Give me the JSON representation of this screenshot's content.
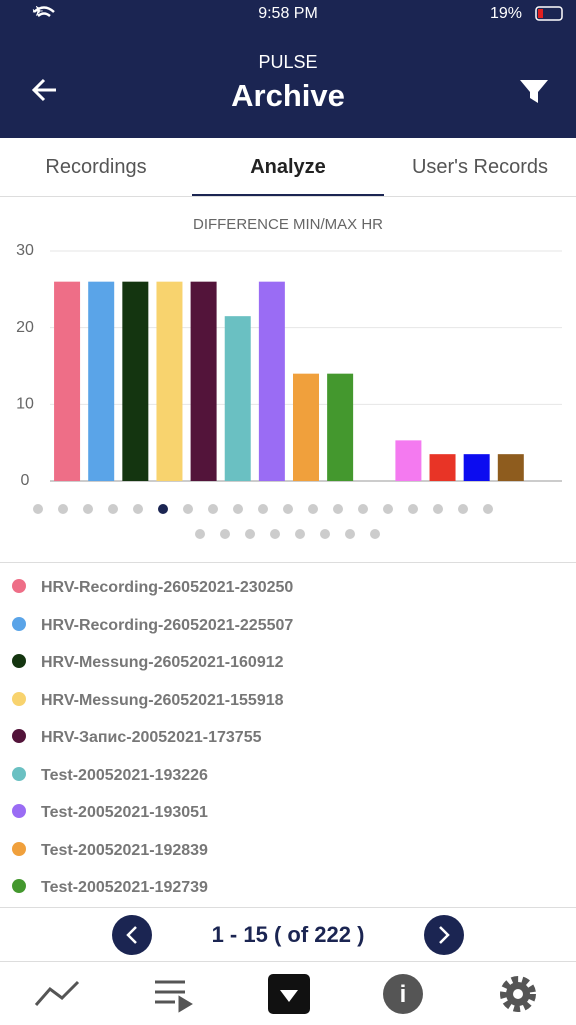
{
  "status_bar": {
    "time": "9:58 PM",
    "battery": "19%"
  },
  "header": {
    "app": "PULSE",
    "title": "Archive"
  },
  "tabs": [
    "Recordings",
    "Analyze",
    "User's Records"
  ],
  "chart_data": {
    "type": "bar",
    "title": "DIFFERENCE MIN/MAX HR",
    "categories": [
      "HRV-Recording-26052021-230250",
      "HRV-Recording-26052021-225507",
      "HRV-Messung-26052021-160912",
      "HRV-Messung-26052021-155918",
      "HRV-Запис-20052021-173755",
      "Test-20052021-193226",
      "Test-20052021-193051",
      "Test-20052021-192839",
      "Test-20052021-192739",
      null,
      null,
      null,
      null,
      null,
      null
    ],
    "values": [
      26,
      26,
      26,
      26,
      26,
      21.5,
      26,
      14,
      14,
      null,
      5.3,
      3.5,
      3.5,
      3.5,
      null
    ],
    "colors": [
      "#ee6e87",
      "#5aa4e8",
      "#143510",
      "#f8d36e",
      "#53143a",
      "#6ac0c2",
      "#9a6cf4",
      "#f0a03c",
      "#44982e",
      null,
      "#f47af0",
      "#e83426",
      "#0c0cf0",
      "#8e5c1e",
      null
    ],
    "ylim": [
      0,
      30
    ],
    "yticks": [
      0,
      10,
      20,
      30
    ],
    "grid": true
  },
  "pagination": "1 - 15 ( of 222 )"
}
